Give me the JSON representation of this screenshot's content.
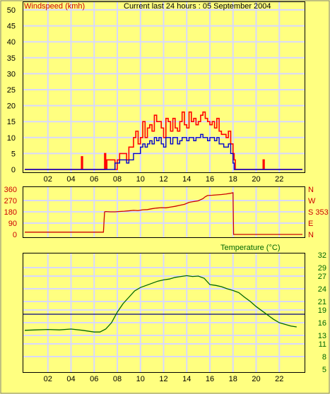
{
  "header": {
    "wind_label": "Windspeed (kmh)",
    "title": "Current last 24 hours : 05 September 2004"
  },
  "colors": {
    "background": "#ffff80",
    "plot_bg": "#ffff80",
    "grid": "#d8d8ff",
    "axis": "#000000",
    "gust": "#ff0000",
    "avg": "#0000cc",
    "direction": "#cc0000",
    "temperature": "#006600",
    "reference": "#000080"
  },
  "chart_data": [
    {
      "type": "line",
      "name": "windspeed",
      "ylabel": "Windspeed (kmh)",
      "ylim": [
        0,
        50
      ],
      "xlim": [
        0,
        24
      ],
      "y_ticks": [
        "0",
        "5",
        "10",
        "15",
        "20",
        "25",
        "30",
        "35",
        "40",
        "45",
        "50"
      ],
      "x_ticks": [
        "02",
        "04",
        "06",
        "08",
        "10",
        "12",
        "14",
        "16",
        "18",
        "20",
        "22"
      ],
      "grid": true,
      "series": [
        {
          "name": "gust",
          "x": [
            0,
            4.9,
            4.9,
            5.0,
            6.9,
            6.9,
            7.0,
            7.0,
            7.1,
            7.1,
            7.8,
            8.0,
            8.2,
            8.4,
            8.6,
            8.8,
            9.0,
            9.2,
            9.4,
            9.6,
            9.8,
            10.0,
            10.2,
            10.4,
            10.6,
            10.8,
            11.0,
            11.2,
            11.4,
            11.6,
            11.8,
            12.0,
            12.2,
            12.4,
            12.6,
            12.8,
            13.0,
            13.2,
            13.4,
            13.6,
            13.8,
            14.0,
            14.2,
            14.4,
            14.6,
            14.8,
            15.0,
            15.2,
            15.4,
            15.6,
            15.8,
            16.0,
            16.2,
            16.4,
            16.6,
            16.8,
            17.0,
            17.2,
            17.4,
            17.6,
            17.8,
            18.0,
            18.1,
            18.2,
            20.6,
            20.6,
            20.7,
            24
          ],
          "y": [
            0,
            0,
            4,
            0,
            0,
            5,
            0,
            3,
            0,
            3,
            0,
            3,
            5,
            5,
            5,
            3,
            7,
            7,
            10,
            12,
            8,
            10,
            15,
            10,
            13,
            14,
            12,
            17,
            15,
            15,
            13,
            10,
            16,
            15,
            12,
            16,
            13,
            12,
            15,
            18,
            14,
            13,
            18,
            15,
            16,
            14,
            15,
            17,
            18,
            16,
            15,
            14,
            15,
            13,
            16,
            12,
            11,
            11,
            10,
            12,
            8,
            5,
            3,
            0,
            0,
            3,
            0,
            0
          ]
        },
        {
          "name": "average",
          "x": [
            0,
            7.6,
            7.8,
            8.0,
            8.2,
            8.4,
            8.6,
            8.8,
            9.0,
            9.2,
            9.4,
            9.6,
            9.8,
            10.0,
            10.2,
            10.4,
            10.6,
            10.8,
            11.0,
            11.2,
            11.4,
            11.6,
            11.8,
            12.0,
            12.2,
            12.4,
            12.6,
            12.8,
            13.0,
            13.2,
            13.4,
            13.6,
            13.8,
            14.0,
            14.2,
            14.4,
            14.6,
            14.8,
            15.0,
            15.2,
            15.4,
            15.6,
            15.8,
            16.0,
            16.2,
            16.4,
            16.6,
            16.8,
            17.0,
            17.2,
            17.4,
            17.6,
            17.8,
            18.0,
            18.1,
            24
          ],
          "y": [
            0,
            0,
            2,
            2,
            3,
            3,
            3,
            2,
            3,
            3,
            5,
            5,
            5,
            7,
            8,
            7,
            8,
            9,
            8,
            10,
            9,
            10,
            8,
            7,
            10,
            10,
            8,
            10,
            10,
            8,
            9,
            10,
            10,
            9,
            10,
            10,
            9,
            10,
            10,
            11,
            10,
            10,
            9,
            10,
            10,
            9,
            10,
            8,
            8,
            7,
            7,
            8,
            5,
            2,
            0,
            0
          ]
        }
      ]
    },
    {
      "type": "line",
      "name": "wind-direction",
      "ylim": [
        0,
        360
      ],
      "xlim": [
        0,
        24
      ],
      "y_ticks": [
        "0",
        "90",
        "180",
        "270",
        "360"
      ],
      "right_labels": [
        "N",
        "W",
        "S 353",
        "E",
        "N"
      ],
      "grid": true,
      "series": [
        {
          "name": "direction",
          "x": [
            0,
            6.8,
            6.9,
            7.0,
            7.4,
            7.8,
            8.2,
            8.6,
            9.0,
            9.4,
            9.8,
            10.2,
            10.6,
            11.0,
            11.4,
            11.8,
            12.2,
            12.6,
            13.0,
            13.4,
            13.8,
            14.2,
            14.6,
            15.0,
            15.4,
            15.6,
            15.8,
            16.2,
            16.6,
            17.0,
            17.4,
            17.8,
            18.0,
            18.05,
            20.0,
            24
          ],
          "y": [
            18,
            18,
            180,
            182,
            180,
            180,
            183,
            185,
            188,
            192,
            190,
            196,
            198,
            205,
            210,
            213,
            212,
            218,
            224,
            232,
            240,
            255,
            262,
            268,
            285,
            300,
            310,
            312,
            315,
            318,
            322,
            328,
            332,
            0,
            0,
            0
          ]
        }
      ]
    },
    {
      "type": "line",
      "name": "temperature",
      "ylabel": "Temperature (°C)",
      "ylim": [
        5,
        32
      ],
      "xlim": [
        0,
        24
      ],
      "y_ticks": [
        "5",
        "8",
        "11",
        "13",
        "16",
        "19",
        "21",
        "24",
        "27",
        "29",
        "32"
      ],
      "x_ticks": [
        "02",
        "04",
        "06",
        "08",
        "10",
        "12",
        "14",
        "16",
        "18",
        "20",
        "22"
      ],
      "reference_line": 18,
      "grid": true,
      "series": [
        {
          "name": "temperature",
          "x": [
            0,
            1,
            2,
            3,
            4,
            5,
            6,
            6.5,
            7,
            7.5,
            8,
            8.5,
            9,
            9.5,
            10,
            10.5,
            11,
            11.5,
            12,
            12.5,
            13,
            13.5,
            14,
            14.5,
            15,
            15.5,
            16,
            16.5,
            17,
            17.5,
            18,
            18.5,
            19,
            19.5,
            20,
            20.5,
            21,
            21.5,
            22,
            22.5,
            23,
            23.5
          ],
          "y": [
            14.2,
            14.3,
            14.4,
            14.3,
            14.5,
            14.2,
            13.8,
            13.8,
            14.5,
            16,
            18.5,
            20.5,
            22,
            23.5,
            24.3,
            24.8,
            25.3,
            25.8,
            26.1,
            26.3,
            26.7,
            26.9,
            27.1,
            26.9,
            27,
            26.5,
            25,
            24.8,
            24.5,
            24,
            23.6,
            23.1,
            22,
            21,
            19.8,
            18.8,
            17.8,
            16.8,
            16,
            15.6,
            15.2,
            15
          ]
        }
      ]
    }
  ]
}
